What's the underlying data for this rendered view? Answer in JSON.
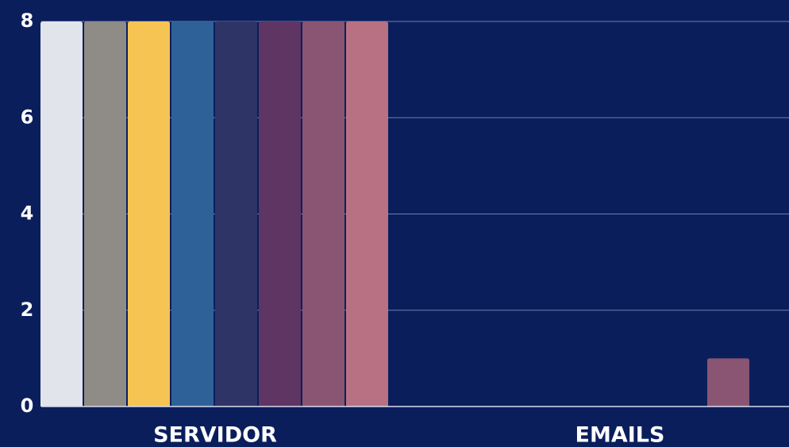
{
  "chart_data": {
    "type": "bar",
    "categories": [
      "SERVIDOR",
      "EMAILS"
    ],
    "series": [
      {
        "color": "#e1e4ea",
        "values": [
          8,
          0
        ]
      },
      {
        "color": "#8f8b87",
        "values": [
          8,
          0
        ]
      },
      {
        "color": "#f6c453",
        "values": [
          8,
          0
        ]
      },
      {
        "color": "#2f6199",
        "values": [
          8,
          0
        ]
      },
      {
        "color": "#2f3467",
        "values": [
          8,
          0
        ]
      },
      {
        "color": "#5e3563",
        "values": [
          8,
          0
        ]
      },
      {
        "color": "#8a5572",
        "values": [
          8,
          1
        ]
      },
      {
        "color": "#b87183",
        "values": [
          8,
          0
        ]
      }
    ],
    "ylim": [
      0,
      8
    ],
    "yticks": [
      0,
      2,
      4,
      6,
      8
    ],
    "grid": true
  }
}
